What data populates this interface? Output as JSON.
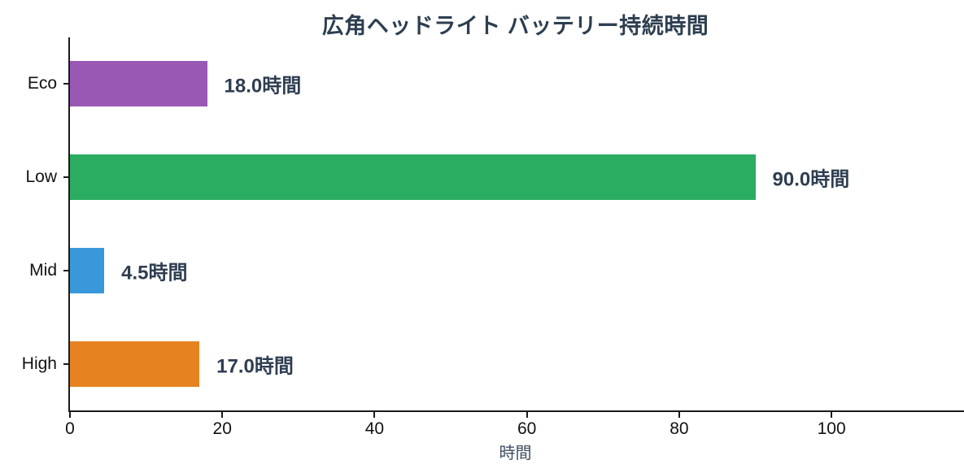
{
  "chart_data": {
    "type": "bar",
    "orientation": "horizontal",
    "title": "広角ヘッドライト バッテリー持続時間",
    "categories": [
      "Eco",
      "Low",
      "Mid",
      "High"
    ],
    "values": [
      18.0,
      90.0,
      4.5,
      17.0
    ],
    "value_labels": [
      "18.0時間",
      "90.0時間",
      "4.5時間",
      "17.0時間"
    ],
    "bar_colors": [
      "#9a58b5",
      "#2aac61",
      "#3898d9",
      "#e68220"
    ],
    "xlabel": "時間",
    "xticks": [
      0,
      20,
      40,
      60,
      80,
      100
    ],
    "xlim": [
      0,
      117.4
    ],
    "grid": false,
    "legend_position": "none",
    "title_color": "#2d3e50",
    "value_label_color": "#2e3d51",
    "axis_color": "#1a1a1a"
  }
}
